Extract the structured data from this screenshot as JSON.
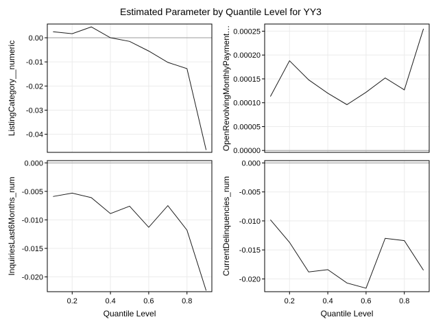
{
  "figure": {
    "title": "Estimated Parameter by Quantile Level for YY3"
  },
  "chart_data": [
    {
      "type": "line",
      "ylabel": "ListingCategory__numeric",
      "xlabel": "",
      "x": [
        0.1,
        0.2,
        0.3,
        0.4,
        0.5,
        0.6,
        0.7,
        0.8,
        0.9
      ],
      "series": [
        {
          "values": [
            0.0025,
            0.0017,
            0.0045,
            0.0,
            -0.0015,
            -0.0055,
            -0.0102,
            -0.0128,
            -0.0465
          ]
        }
      ],
      "xlim": [
        0.07,
        0.93
      ],
      "ylim": [
        -0.0475,
        0.0057
      ],
      "xticks": [],
      "yticks": [
        {
          "v": 0.0,
          "label": "0.00"
        },
        {
          "v": -0.01,
          "label": "-0.01"
        },
        {
          "v": -0.02,
          "label": "-0.02"
        },
        {
          "v": -0.03,
          "label": "-0.03"
        },
        {
          "v": -0.04,
          "label": "-0.04"
        }
      ],
      "zero_line": 0,
      "grid": true
    },
    {
      "type": "line",
      "ylabel": "OpenRevolvingMonthlyPayment…",
      "xlabel": "",
      "x": [
        0.1,
        0.2,
        0.3,
        0.4,
        0.5,
        0.6,
        0.7,
        0.8,
        0.9
      ],
      "series": [
        {
          "values": [
            0.000113,
            0.000188,
            0.000148,
            0.00012,
            9.6e-05,
            0.000122,
            0.000152,
            0.000127,
            0.000255
          ]
        }
      ],
      "xlim": [
        0.07,
        0.93
      ],
      "ylim": [
        -4e-06,
        0.000265
      ],
      "xticks": [],
      "yticks": [
        {
          "v": 0.00025,
          "label": "0.00025"
        },
        {
          "v": 0.0002,
          "label": "0.00020"
        },
        {
          "v": 0.00015,
          "label": "0.00015"
        },
        {
          "v": 0.0001,
          "label": "0.00010"
        },
        {
          "v": 5e-05,
          "label": "0.00005"
        },
        {
          "v": 0.0,
          "label": "0.00000"
        }
      ],
      "zero_line": 0,
      "grid": true
    },
    {
      "type": "line",
      "ylabel": "InquiriesLast6Months_num",
      "xlabel": "Quantile Level",
      "x": [
        0.1,
        0.2,
        0.3,
        0.4,
        0.5,
        0.6,
        0.7,
        0.8,
        0.9
      ],
      "series": [
        {
          "values": [
            -0.0059,
            -0.0053,
            -0.0061,
            -0.0089,
            -0.0076,
            -0.0113,
            -0.0075,
            -0.0118,
            -0.0224
          ]
        }
      ],
      "xlim": [
        0.07,
        0.93
      ],
      "ylim": [
        -0.0226,
        0.0004
      ],
      "xticks": [
        {
          "v": 0.2,
          "label": "0.2"
        },
        {
          "v": 0.4,
          "label": "0.4"
        },
        {
          "v": 0.6,
          "label": "0.6"
        },
        {
          "v": 0.8,
          "label": "0.8"
        }
      ],
      "yticks": [
        {
          "v": 0.0,
          "label": "0.000"
        },
        {
          "v": -0.005,
          "label": "-0.005"
        },
        {
          "v": -0.01,
          "label": "-0.010"
        },
        {
          "v": -0.015,
          "label": "-0.015"
        },
        {
          "v": -0.02,
          "label": "-0.020"
        }
      ],
      "zero_line": 0,
      "grid": true
    },
    {
      "type": "line",
      "ylabel": "CurrentDelinquencies_num",
      "xlabel": "Quantile Level",
      "x": [
        0.1,
        0.2,
        0.3,
        0.4,
        0.5,
        0.6,
        0.7,
        0.8,
        0.9
      ],
      "series": [
        {
          "values": [
            -0.0098,
            -0.0137,
            -0.0188,
            -0.0184,
            -0.0207,
            -0.0216,
            -0.013,
            -0.0134,
            -0.0185
          ]
        }
      ],
      "xlim": [
        0.07,
        0.93
      ],
      "ylim": [
        -0.0222,
        0.0004
      ],
      "xticks": [
        {
          "v": 0.2,
          "label": "0.2"
        },
        {
          "v": 0.4,
          "label": "0.4"
        },
        {
          "v": 0.6,
          "label": "0.6"
        },
        {
          "v": 0.8,
          "label": "0.8"
        }
      ],
      "yticks": [
        {
          "v": 0.0,
          "label": "0.000"
        },
        {
          "v": -0.005,
          "label": "-0.005"
        },
        {
          "v": -0.01,
          "label": "-0.010"
        },
        {
          "v": -0.015,
          "label": "-0.015"
        },
        {
          "v": -0.02,
          "label": "-0.020"
        }
      ],
      "zero_line": 0,
      "grid": true
    }
  ]
}
